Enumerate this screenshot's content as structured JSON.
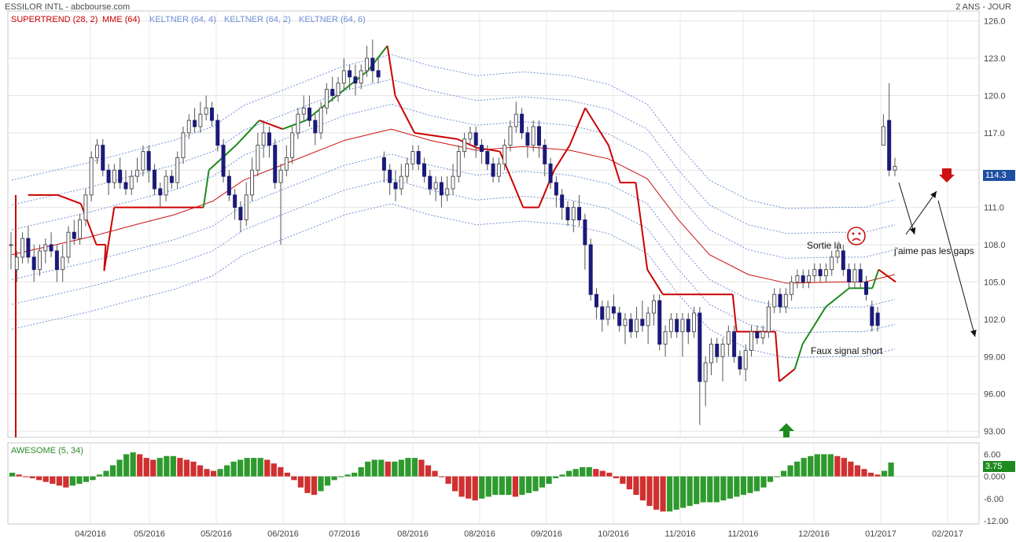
{
  "header": {
    "title": "ESSILOR INTL - abcbourse.com",
    "period": "2 ANS - JOUR"
  },
  "legend": [
    {
      "label": "SUPERTREND (28, 2)",
      "color": "#cc0000"
    },
    {
      "label": "MME (64)",
      "color": "#cc0000"
    },
    {
      "label": "KELTNER (64, 4)",
      "color": "#6f8fd8"
    },
    {
      "label": "KELTNER (64, 2)",
      "color": "#6f8fd8"
    },
    {
      "label": "KELTNER (64, 6)",
      "color": "#6f8fd8"
    }
  ],
  "indicator": {
    "label": "AWESOME (5, 34)",
    "last_value": "3.75",
    "y_ticks": [
      "6.00",
      "0.000",
      "-6.00",
      "-12.00"
    ]
  },
  "price_badge": "114.3",
  "annotations": {
    "sortie": "Sortie là",
    "gaps": "j'aime pas les gaps",
    "faux_signal": "Faux signal short"
  },
  "colors": {
    "up_candle": "#ffffff",
    "down_candle": "#1a1a7a",
    "supertrend_up": "#1e8a1e",
    "supertrend_down": "#cc0000",
    "ema": "#cc1111",
    "keltner": "#6f8fd8",
    "ao_up": "#2e9a2e",
    "ao_down": "#d03030",
    "badge": "#1f4fa3",
    "ao_badge": "#1e8a1e"
  },
  "chart_data": {
    "type": "candlestick",
    "title": "ESSILOR INTL",
    "y_ticks": [
      126.0,
      123.0,
      120.0,
      117.0,
      114.0,
      111.0,
      108.0,
      105.0,
      102.0,
      99.0,
      96.0,
      93.0
    ],
    "y_tick_labels": [
      "126.0",
      "123.0",
      "120.0",
      "117.0",
      "",
      "111.0",
      "108.0",
      "105.0",
      "102.0",
      "99.00",
      "96.00",
      "93.00"
    ],
    "ylim": [
      92.5,
      126.8
    ],
    "x_labels": [
      "04/2016",
      "05/2016",
      "05/2016",
      "06/2016",
      "07/2016",
      "08/2016",
      "08/2016",
      "09/2016",
      "10/2016",
      "11/2016",
      "11/2016",
      "12/2016",
      "01/2017",
      "02/2017"
    ],
    "last_price": 114.3,
    "ema_points": [
      [
        107.2,
        1
      ],
      [
        108.6,
        100
      ],
      [
        109.6,
        160
      ],
      [
        110.4,
        210
      ],
      [
        111.5,
        260
      ],
      [
        113.2,
        300
      ],
      [
        116.4,
        430
      ],
      [
        117.3,
        490
      ],
      [
        116.4,
        540
      ],
      [
        115.6,
        600
      ],
      [
        115.9,
        660
      ],
      [
        115.6,
        720
      ],
      [
        114.9,
        770
      ],
      [
        113.3,
        820
      ],
      [
        110.0,
        860
      ],
      [
        107.2,
        900
      ],
      [
        105.6,
        950
      ],
      [
        104.9,
        1000
      ],
      [
        105.0,
        1060
      ],
      [
        105.0,
        1100
      ],
      [
        105.6,
        1139
      ]
    ],
    "supertrend_points": [
      [
        112.0,
        22
      ],
      [
        112.0,
        60
      ],
      [
        111.3,
        90
      ],
      [
        108.0,
        110
      ],
      [
        108.0,
        122
      ],
      [
        105.9,
        120
      ],
      [
        111.0,
        133
      ],
      [
        111.0,
        248
      ],
      [
        114.0,
        255
      ],
      [
        116.0,
        290
      ],
      [
        118.0,
        320
      ],
      [
        117.3,
        350
      ],
      [
        118.0,
        380
      ],
      [
        120.0,
        420
      ],
      [
        122.0,
        460
      ],
      [
        124.0,
        485
      ],
      [
        120.0,
        495
      ],
      [
        117.0,
        520
      ],
      [
        116.5,
        575
      ],
      [
        115.8,
        600
      ],
      [
        115.5,
        630
      ],
      [
        114.0,
        640
      ],
      [
        111.0,
        660
      ],
      [
        111.0,
        680
      ],
      [
        114.0,
        700
      ],
      [
        116.0,
        720
      ],
      [
        119.0,
        740
      ],
      [
        116.0,
        770
      ],
      [
        113.0,
        785
      ],
      [
        113.0,
        805
      ],
      [
        106.0,
        820
      ],
      [
        104.0,
        840
      ],
      [
        104.0,
        870
      ],
      [
        104.0,
        930
      ],
      [
        101.0,
        935
      ],
      [
        101.0,
        985
      ],
      [
        97.0,
        990
      ],
      [
        98.0,
        1010
      ],
      [
        100.0,
        1020
      ],
      [
        103.0,
        1050
      ],
      [
        104.5,
        1080
      ],
      [
        104.5,
        1110
      ],
      [
        106.0,
        1118
      ],
      [
        105.0,
        1140
      ]
    ],
    "ao_values": [
      1.0,
      0.5,
      0.0,
      -0.5,
      -1.0,
      -1.5,
      -2.0,
      -2.5,
      -3.0,
      -2.5,
      -2.0,
      -1.5,
      -1.0,
      0.5,
      1.5,
      3.0,
      4.5,
      6.0,
      6.5,
      6.0,
      5.0,
      4.5,
      5.0,
      5.5,
      5.5,
      5.0,
      4.5,
      4.0,
      3.0,
      2.0,
      1.5,
      2.0,
      3.0,
      4.0,
      4.5,
      5.0,
      5.0,
      5.0,
      4.5,
      3.5,
      2.5,
      1.0,
      -1.0,
      -3.0,
      -4.5,
      -5.0,
      -4.0,
      -2.5,
      -1.0,
      0.0,
      0.5,
      1.0,
      2.5,
      4.0,
      4.5,
      4.5,
      4.0,
      4.0,
      4.5,
      5.0,
      5.0,
      4.5,
      3.0,
      1.5,
      0.0,
      -2.0,
      -4.0,
      -5.5,
      -6.0,
      -6.5,
      -6.0,
      -5.5,
      -5.0,
      -5.0,
      -5.0,
      -5.5,
      -5.0,
      -4.5,
      -4.0,
      -3.0,
      -2.0,
      -0.5,
      0.5,
      1.5,
      2.0,
      2.5,
      2.5,
      2.0,
      1.5,
      1.0,
      -0.5,
      -2.0,
      -3.5,
      -5.0,
      -6.5,
      -8.0,
      -9.0,
      -9.5,
      -9.5,
      -9.0,
      -8.5,
      -8.0,
      -7.5,
      -7.0,
      -7.0,
      -7.0,
      -6.5,
      -6.0,
      -5.5,
      -5.0,
      -4.5,
      -4.0,
      -3.0,
      -1.5,
      0.0,
      1.5,
      3.0,
      4.0,
      5.0,
      5.5,
      6.0,
      6.0,
      6.0,
      5.5,
      5.0,
      4.0,
      3.0,
      2.0,
      1.0,
      0.5,
      1.5,
      3.75
    ],
    "candles": [
      [
        108.0,
        108.0,
        109.0,
        106.0
      ],
      [
        106.0,
        107.0,
        107.5,
        105.0
      ],
      [
        107.0,
        108.5,
        109.0,
        106.5
      ],
      [
        108.5,
        107.0,
        109.5,
        106.5
      ],
      [
        107.0,
        106.0,
        108.0,
        105.0
      ],
      [
        106.0,
        107.5,
        108.0,
        105.5
      ],
      [
        107.5,
        108.0,
        108.5,
        106.5
      ],
      [
        108.0,
        107.5,
        109.0,
        107.0
      ],
      [
        107.5,
        106.0,
        108.0,
        105.0
      ],
      [
        106.0,
        107.0,
        108.0,
        105.0
      ],
      [
        107.0,
        109.0,
        109.5,
        106.5
      ],
      [
        109.0,
        108.5,
        110.0,
        108.0
      ],
      [
        108.5,
        110.0,
        110.5,
        108.0
      ],
      [
        110.0,
        112.0,
        112.5,
        109.5
      ],
      [
        112.0,
        115.0,
        115.5,
        111.5
      ],
      [
        115.0,
        116.0,
        116.5,
        114.5
      ],
      [
        116.0,
        114.0,
        116.5,
        113.5
      ],
      [
        114.0,
        113.0,
        114.5,
        112.0
      ],
      [
        113.0,
        114.0,
        114.5,
        112.5
      ],
      [
        114.0,
        113.0,
        115.0,
        112.5
      ],
      [
        113.0,
        112.5,
        114.0,
        112.0
      ],
      [
        112.5,
        113.5,
        114.0,
        112.0
      ],
      [
        113.5,
        114.0,
        115.0,
        113.0
      ],
      [
        114.0,
        115.5,
        116.0,
        113.5
      ],
      [
        115.5,
        114.0,
        116.0,
        113.0
      ],
      [
        114.0,
        112.5,
        114.5,
        112.0
      ],
      [
        112.5,
        112.0,
        113.0,
        111.0
      ],
      [
        112.0,
        113.5,
        114.0,
        111.5
      ],
      [
        113.5,
        113.0,
        114.0,
        112.5
      ],
      [
        113.0,
        115.0,
        115.5,
        112.5
      ],
      [
        115.0,
        117.0,
        117.5,
        114.5
      ],
      [
        117.0,
        118.0,
        118.5,
        116.5
      ],
      [
        118.0,
        117.5,
        119.0,
        117.0
      ],
      [
        117.5,
        118.5,
        119.5,
        117.0
      ],
      [
        118.5,
        119.0,
        120.0,
        118.0
      ],
      [
        119.0,
        118.0,
        119.5,
        117.5
      ],
      [
        118.0,
        116.0,
        118.5,
        115.5
      ],
      [
        116.0,
        113.5,
        116.5,
        113.0
      ],
      [
        113.5,
        112.0,
        114.0,
        111.5
      ],
      [
        112.0,
        111.0,
        112.5,
        110.0
      ],
      [
        111.0,
        110.0,
        111.5,
        109.0
      ],
      [
        110.0,
        112.0,
        113.0,
        109.5
      ],
      [
        112.0,
        114.0,
        115.0,
        111.5
      ],
      [
        114.0,
        116.0,
        117.0,
        113.5
      ],
      [
        116.0,
        117.0,
        118.0,
        115.0
      ],
      [
        117.0,
        116.0,
        117.5,
        115.0
      ],
      [
        116.0,
        113.0,
        116.5,
        112.5
      ],
      [
        113.0,
        114.0,
        114.5,
        108.0
      ],
      [
        114.0,
        115.0,
        116.0,
        113.5
      ],
      [
        115.0,
        117.0,
        117.5,
        114.5
      ],
      [
        117.0,
        118.5,
        119.0,
        116.5
      ],
      [
        118.5,
        119.0,
        120.0,
        118.0
      ],
      [
        119.0,
        118.0,
        120.0,
        117.5
      ],
      [
        118.0,
        117.0,
        118.5,
        116.0
      ],
      [
        117.0,
        119.0,
        119.5,
        116.5
      ],
      [
        119.0,
        120.5,
        121.0,
        118.5
      ],
      [
        120.5,
        120.0,
        121.5,
        119.5
      ],
      [
        120.0,
        121.0,
        121.5,
        119.5
      ],
      [
        121.0,
        122.0,
        123.0,
        120.5
      ],
      [
        122.0,
        121.5,
        122.5,
        120.5
      ],
      [
        121.5,
        121.0,
        122.5,
        120.0
      ],
      [
        121.0,
        122.0,
        122.5,
        120.5
      ],
      [
        122.0,
        123.0,
        124.0,
        121.5
      ],
      [
        123.0,
        122.0,
        124.5,
        121.0
      ],
      [
        122.0,
        121.5,
        123.0,
        121.0
      ],
      [
        115.0,
        114.0,
        115.5,
        113.0
      ],
      [
        114.0,
        113.0,
        114.5,
        112.0
      ],
      [
        113.0,
        112.5,
        114.0,
        111.5
      ],
      [
        112.5,
        113.5,
        114.5,
        112.0
      ],
      [
        113.5,
        114.5,
        115.0,
        113.0
      ],
      [
        114.5,
        115.5,
        116.0,
        114.0
      ],
      [
        115.5,
        114.5,
        116.0,
        114.0
      ],
      [
        114.5,
        113.5,
        115.0,
        113.0
      ],
      [
        113.5,
        112.5,
        114.0,
        112.0
      ],
      [
        112.5,
        113.0,
        113.5,
        111.5
      ],
      [
        113.0,
        112.0,
        113.5,
        111.0
      ],
      [
        112.0,
        112.5,
        113.5,
        111.5
      ],
      [
        112.5,
        113.5,
        114.5,
        112.0
      ],
      [
        113.5,
        115.5,
        116.0,
        113.0
      ],
      [
        115.5,
        116.5,
        117.0,
        115.0
      ],
      [
        116.5,
        117.0,
        117.5,
        116.0
      ],
      [
        117.0,
        116.0,
        117.5,
        115.0
      ],
      [
        116.0,
        115.5,
        116.5,
        114.5
      ],
      [
        115.5,
        114.5,
        116.0,
        114.0
      ],
      [
        114.5,
        113.5,
        115.0,
        113.0
      ],
      [
        113.5,
        114.5,
        115.0,
        113.0
      ],
      [
        114.5,
        116.0,
        116.5,
        114.0
      ],
      [
        116.0,
        117.5,
        118.0,
        115.5
      ],
      [
        117.5,
        118.5,
        119.5,
        117.0
      ],
      [
        118.5,
        117.0,
        119.0,
        116.5
      ],
      [
        117.0,
        116.0,
        117.5,
        115.0
      ],
      [
        116.0,
        117.5,
        118.0,
        115.5
      ],
      [
        117.5,
        116.0,
        118.0,
        115.0
      ],
      [
        116.0,
        114.5,
        116.5,
        113.5
      ],
      [
        114.5,
        113.0,
        115.0,
        112.5
      ],
      [
        113.0,
        112.0,
        113.5,
        111.0
      ],
      [
        112.0,
        111.0,
        112.5,
        110.0
      ],
      [
        111.0,
        110.0,
        111.5,
        109.5
      ],
      [
        110.0,
        111.0,
        111.5,
        109.0
      ],
      [
        111.0,
        110.0,
        112.0,
        109.5
      ],
      [
        110.0,
        108.0,
        110.5,
        106.0
      ],
      [
        108.0,
        104.0,
        108.5,
        103.5
      ],
      [
        104.0,
        103.0,
        104.5,
        102.0
      ],
      [
        103.0,
        102.0,
        103.5,
        101.0
      ],
      [
        102.0,
        103.0,
        103.5,
        101.5
      ],
      [
        103.0,
        102.5,
        104.0,
        102.0
      ],
      [
        102.5,
        101.5,
        103.0,
        101.0
      ],
      [
        101.5,
        102.0,
        102.5,
        100.0
      ],
      [
        102.0,
        101.0,
        102.5,
        100.5
      ],
      [
        101.0,
        102.0,
        103.0,
        100.5
      ],
      [
        102.0,
        101.5,
        103.5,
        101.0
      ],
      [
        101.5,
        102.5,
        103.0,
        100.0
      ],
      [
        102.5,
        103.5,
        104.0,
        101.5
      ],
      [
        103.5,
        100.0,
        104.0,
        99.5
      ],
      [
        100.0,
        101.0,
        101.5,
        99.0
      ],
      [
        101.0,
        102.0,
        102.5,
        100.5
      ],
      [
        102.0,
        101.0,
        102.5,
        100.5
      ],
      [
        101.0,
        102.0,
        102.5,
        99.0
      ],
      [
        102.0,
        101.0,
        102.5,
        100.0
      ],
      [
        101.0,
        102.5,
        103.0,
        100.5
      ],
      [
        102.5,
        97.0,
        103.0,
        93.5
      ],
      [
        97.0,
        98.5,
        99.0,
        95.0
      ],
      [
        98.5,
        100.0,
        100.5,
        97.5
      ],
      [
        100.0,
        99.0,
        100.5,
        98.5
      ],
      [
        99.0,
        100.0,
        100.5,
        97.0
      ],
      [
        100.0,
        101.0,
        101.5,
        99.0
      ],
      [
        101.0,
        99.0,
        101.5,
        98.5
      ],
      [
        99.0,
        98.0,
        99.5,
        97.5
      ],
      [
        98.0,
        99.5,
        100.0,
        97.0
      ],
      [
        99.5,
        101.0,
        101.5,
        99.0
      ],
      [
        101.0,
        100.5,
        101.5,
        100.0
      ],
      [
        100.5,
        101.0,
        101.5,
        100.0
      ],
      [
        101.0,
        103.0,
        103.5,
        100.5
      ],
      [
        103.0,
        104.0,
        104.5,
        102.5
      ],
      [
        104.0,
        103.0,
        104.5,
        102.5
      ],
      [
        103.0,
        104.0,
        104.5,
        102.5
      ],
      [
        104.0,
        105.0,
        105.5,
        103.5
      ],
      [
        105.0,
        105.5,
        106.0,
        104.5
      ],
      [
        105.5,
        105.0,
        106.0,
        104.5
      ],
      [
        105.0,
        105.5,
        106.0,
        104.5
      ],
      [
        105.5,
        106.0,
        106.5,
        105.0
      ],
      [
        106.0,
        105.5,
        106.5,
        105.0
      ],
      [
        105.5,
        106.0,
        106.5,
        105.0
      ],
      [
        106.0,
        107.0,
        107.5,
        105.5
      ],
      [
        107.0,
        107.5,
        108.0,
        106.5
      ],
      [
        107.5,
        106.0,
        108.0,
        105.5
      ],
      [
        106.0,
        105.0,
        106.5,
        104.5
      ],
      [
        105.0,
        106.0,
        106.5,
        104.5
      ],
      [
        106.0,
        105.0,
        106.5,
        104.5
      ],
      [
        105.0,
        104.0,
        105.5,
        103.5
      ],
      [
        103.0,
        101.5,
        103.5,
        101.0
      ],
      [
        102.5,
        101.5,
        103.0,
        101.0
      ],
      [
        116.0,
        117.5,
        118.5,
        116.0
      ],
      [
        118.0,
        114.0,
        121.0,
        113.5
      ],
      [
        114.0,
        114.3,
        115.0,
        113.5
      ]
    ]
  }
}
